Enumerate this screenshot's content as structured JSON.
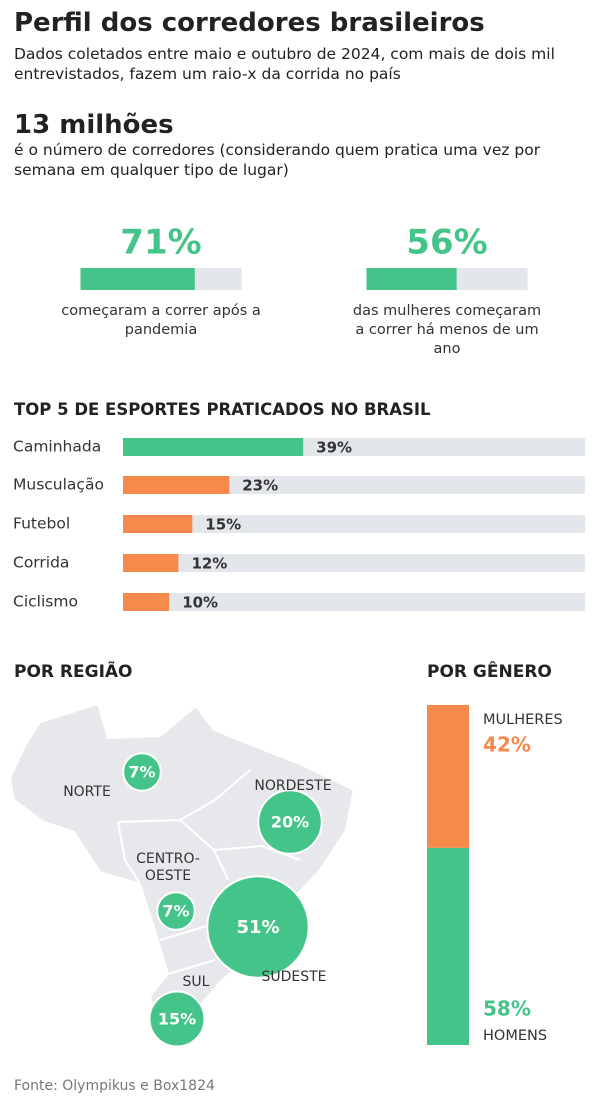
{
  "header": {
    "title": "Perfil dos corredores brasileiros",
    "subtitle": "Dados coletados entre maio e outubro de 2024, com mais de dois mil entrevistados, fazem um raio-x da corrida no país"
  },
  "highlight": {
    "value": "13 milhões",
    "text": "é o número de corredores (considerando quem pratica uma vez por semana em qualquer tipo de lugar)"
  },
  "chart_data": [
    {
      "type": "progress",
      "categories": [
        "começaram a correr após a pandemia",
        "das mulheres começaram a correr há menos de um ano"
      ],
      "values": [
        71,
        56
      ],
      "value_labels": [
        "71%",
        "56%"
      ],
      "color": "#45c48a",
      "xlim": [
        0,
        100
      ]
    },
    {
      "type": "bar",
      "title": "TOP 5 DE ESPORTES PRATICADOS NO BRASIL",
      "categories": [
        "Caminhada",
        "Musculação",
        "Futebol",
        "Corrida",
        "Ciclismo"
      ],
      "values": [
        39,
        23,
        15,
        12,
        10
      ],
      "value_labels": [
        "39%",
        "23%",
        "15%",
        "12%",
        "10%"
      ],
      "colors": [
        "#45c48a",
        "#f58a4b",
        "#f58a4b",
        "#f58a4b",
        "#f58a4b"
      ],
      "xlim": [
        0,
        100
      ]
    },
    {
      "type": "bubble-map",
      "title": "POR REGIÃO",
      "categories": [
        "NORTE",
        "NORDESTE",
        "CENTRO-OESTE",
        "SUDESTE",
        "SUL"
      ],
      "values": [
        7,
        20,
        7,
        51,
        15
      ],
      "value_labels": [
        "7%",
        "20%",
        "7%",
        "51%",
        "15%"
      ],
      "color": "#45c48a"
    },
    {
      "type": "stacked-bar",
      "title": "POR GÊNERO",
      "series": [
        {
          "name": "MULHERES",
          "color": "#f58a4b",
          "values": [
            42
          ],
          "value_labels": [
            "42%"
          ]
        },
        {
          "name": "HOMENS",
          "color": "#45c48a",
          "values": [
            58
          ],
          "value_labels": [
            "58%"
          ]
        }
      ],
      "ylim": [
        0,
        100
      ]
    }
  ],
  "source": "Fonte: Olympikus e Box1824"
}
